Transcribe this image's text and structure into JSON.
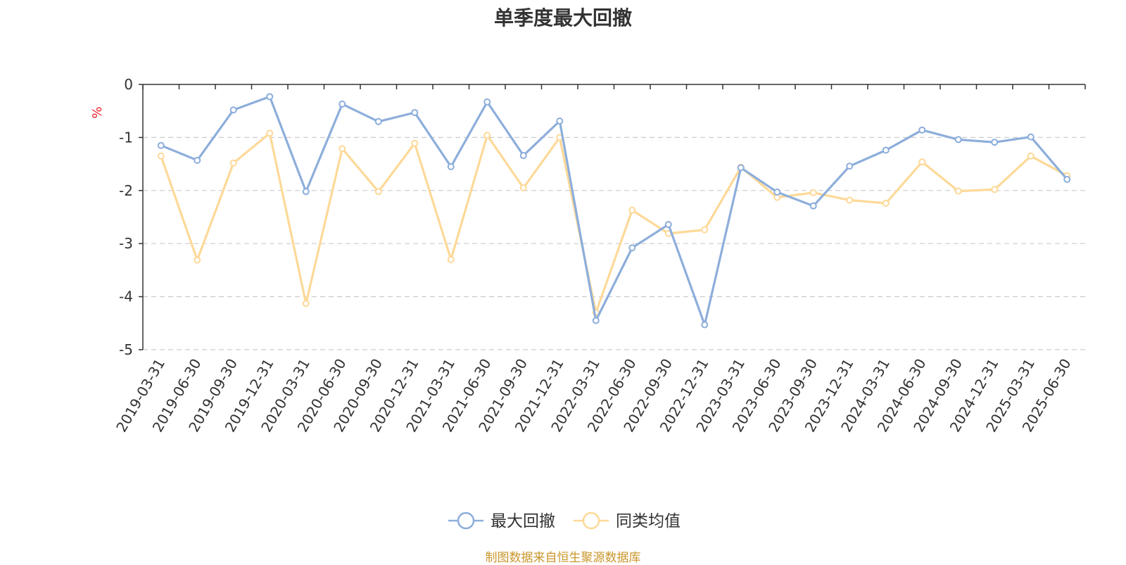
{
  "chart_data": {
    "type": "line",
    "title": "单季度最大回撤",
    "ylabel": "%",
    "ylim": [
      -5,
      0
    ],
    "yticks": [
      0,
      -1,
      -2,
      -3,
      -4,
      -5
    ],
    "grid": true,
    "legend_position": "bottom-center",
    "x": [
      "2019-03-31",
      "2019-06-30",
      "2019-09-30",
      "2019-12-31",
      "2020-03-31",
      "2020-06-30",
      "2020-09-30",
      "2020-12-31",
      "2021-03-31",
      "2021-06-30",
      "2021-09-30",
      "2021-12-31",
      "2022-03-31",
      "2022-06-30",
      "2022-09-30",
      "2022-12-31",
      "2023-03-31",
      "2023-06-30",
      "2023-09-30",
      "2023-12-31",
      "2024-03-31",
      "2024-06-30",
      "2024-09-30",
      "2024-12-31",
      "2025-03-31",
      "2025-06-30"
    ],
    "series": [
      {
        "name": "最大回撤",
        "color": "#8daedb",
        "values": [
          -1.15,
          -1.43,
          -0.48,
          -0.23,
          -2.02,
          -0.37,
          -0.7,
          -0.53,
          -1.55,
          -0.33,
          -1.34,
          -0.69,
          -4.45,
          -3.08,
          -2.64,
          -4.53,
          -1.57,
          -2.03,
          -2.29,
          -1.54,
          -1.24,
          -0.86,
          -1.04,
          -1.09,
          -0.99,
          -1.79
        ]
      },
      {
        "name": "同类均值",
        "color": "#fdd998",
        "values": [
          -1.35,
          -3.31,
          -1.48,
          -0.92,
          -4.13,
          -1.21,
          -2.02,
          -1.11,
          -3.3,
          -0.96,
          -1.95,
          -1.0,
          -4.3,
          -2.37,
          -2.81,
          -2.74,
          -1.56,
          -2.13,
          -2.04,
          -2.18,
          -2.24,
          -1.46,
          -2.01,
          -1.98,
          -1.35,
          -1.72
        ]
      }
    ]
  },
  "source": "制图数据来自恒生聚源数据库"
}
